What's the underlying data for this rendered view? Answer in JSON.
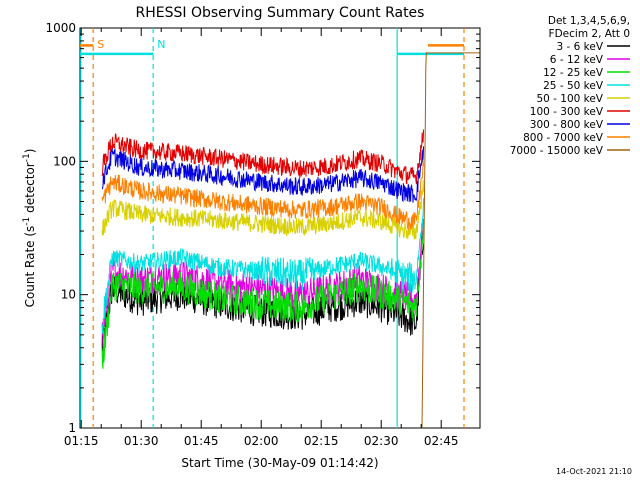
{
  "chart_data": {
    "type": "line",
    "title": "RHESSI Observing Summary Count Rates",
    "xlabel": "Start Time (30-May-09 01:14:42)",
    "ylabel_parts": [
      "Count Rate (s",
      "-1",
      " detector",
      "-1",
      ")"
    ],
    "ylog": true,
    "ylim": [
      1,
      1000
    ],
    "xlim_minutes": [
      0,
      100
    ],
    "x_tick_labels": [
      "01:15",
      "01:30",
      "01:45",
      "02:00",
      "02:15",
      "02:30",
      "02:45"
    ],
    "x_tick_minutes": [
      0.3,
      15.3,
      30.3,
      45.3,
      60.3,
      75.3,
      90.3
    ],
    "y_tick_values": [
      1,
      10,
      100,
      1000
    ],
    "y_tick_labels": [
      "1",
      "10",
      "100",
      "1000"
    ],
    "legend_header": [
      "Det 1,3,4,5,6,9,",
      "FDecim 2, Att 0"
    ],
    "series": [
      {
        "name": "3 - 6 keV",
        "color": "#000000",
        "x": [
          5.5,
          8,
          15,
          25,
          35,
          45,
          55,
          62,
          70,
          76,
          80,
          84,
          86
        ],
        "y": [
          4,
          11,
          9,
          10,
          8.5,
          7.5,
          7,
          8,
          9,
          8,
          7,
          6,
          30
        ]
      },
      {
        "name": "6 - 12 keV",
        "color": "#e000e0",
        "x": [
          5.5,
          8,
          15,
          25,
          35,
          45,
          55,
          62,
          70,
          76,
          80,
          84,
          86
        ],
        "y": [
          5,
          15,
          13,
          14,
          12,
          11,
          10,
          11,
          13,
          11,
          10,
          9,
          40
        ]
      },
      {
        "name": "12 - 25 keV",
        "color": "#00e000",
        "x": [
          5.5,
          8,
          15,
          25,
          35,
          45,
          55,
          62,
          70,
          76,
          80,
          84,
          86
        ],
        "y": [
          3,
          12,
          11,
          11.5,
          9.5,
          8.5,
          8,
          9.5,
          11.5,
          10,
          9,
          8,
          35
        ]
      },
      {
        "name": "25 - 50 keV",
        "color": "#00e0e0",
        "x": [
          5.5,
          8,
          15,
          25,
          35,
          45,
          55,
          62,
          70,
          76,
          80,
          84,
          86
        ],
        "y": [
          6,
          19,
          17,
          19,
          16,
          15,
          14,
          16,
          18,
          16,
          14,
          13,
          50
        ]
      },
      {
        "name": "50 - 100 keV",
        "color": "#d8d000",
        "x": [
          5.5,
          8,
          15,
          25,
          35,
          45,
          55,
          62,
          70,
          76,
          80,
          84,
          86
        ],
        "y": [
          30,
          45,
          40,
          38,
          36,
          34,
          32,
          34,
          38,
          35,
          31,
          29,
          70
        ]
      },
      {
        "name": "100 - 300 keV",
        "color": "#e00000",
        "x": [
          5.5,
          8,
          15,
          25,
          35,
          45,
          55,
          62,
          70,
          76,
          80,
          84,
          86
        ],
        "y": [
          90,
          140,
          120,
          115,
          105,
          95,
          88,
          92,
          105,
          95,
          82,
          76,
          170
        ]
      },
      {
        "name": "300 - 800 keV",
        "color": "#0000e0",
        "x": [
          5.5,
          8,
          15,
          25,
          35,
          45,
          55,
          62,
          70,
          76,
          80,
          84,
          86
        ],
        "y": [
          70,
          110,
          90,
          85,
          78,
          70,
          64,
          67,
          75,
          68,
          60,
          56,
          130
        ]
      },
      {
        "name": "800 - 7000 keV",
        "color": "#ff8000",
        "x": [
          5.5,
          8,
          15,
          25,
          35,
          45,
          55,
          62,
          70,
          76,
          80,
          84,
          86
        ],
        "y": [
          50,
          70,
          60,
          55,
          50,
          46,
          43,
          45,
          50,
          45,
          38,
          35,
          100
        ]
      },
      {
        "name": "7000 - 15000 keV",
        "color": "#a06010",
        "x": [
          85.5,
          86,
          86.5,
          87,
          100
        ],
        "y": [
          1,
          25,
          650,
          650,
          650
        ]
      }
    ],
    "annotations": [
      {
        "text": "S",
        "color": "#ff8000",
        "x_minutes": 3.3
      },
      {
        "text": "N",
        "color": "#00e0e0",
        "x_minutes": 18.3
      }
    ],
    "attenuator_bands": [
      {
        "color": "#00e0e0",
        "from_minutes": 0,
        "to_minutes": 18.3,
        "level": 640
      },
      {
        "color": "#00e0e0",
        "from_minutes": 79.3,
        "to_minutes": 96,
        "level": 640
      },
      {
        "color": "#ff8000",
        "from_minutes": 0,
        "to_minutes": 3.3,
        "level": 740
      },
      {
        "color": "#ff8000",
        "from_minutes": 87,
        "to_minutes": 96,
        "level": 740
      }
    ],
    "vertical_markers": [
      {
        "color": "#ff8000",
        "x_minutes": 3.3,
        "style": "dashed"
      },
      {
        "color": "#00e0e0",
        "x_minutes": 18.3,
        "style": "dashed"
      },
      {
        "color": "#00e0e0",
        "x_minutes": 79.3,
        "style": "solid"
      },
      {
        "color": "#ff8000",
        "x_minutes": 96,
        "style": "dashed"
      },
      {
        "color": "#00e0e0",
        "x_minutes": 0.2,
        "style": "solid"
      }
    ],
    "grid": false,
    "legend_position": "right"
  },
  "timestamp": "14-Oct-2021 21:10"
}
